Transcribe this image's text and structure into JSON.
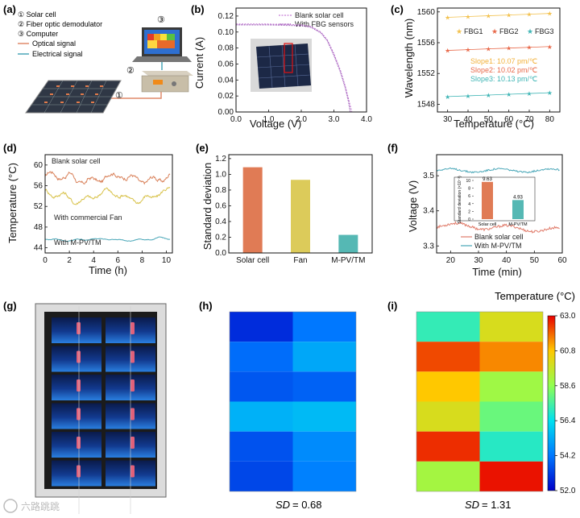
{
  "panels": {
    "a": {
      "label": "(a)",
      "legend": [
        "① Solar cell",
        "② Fiber optic demodulator",
        "③ Computer"
      ],
      "signals": [
        "Optical signal",
        "Electrical signal"
      ],
      "markers": [
        "①",
        "②",
        "③"
      ],
      "colors": {
        "optical": "#e08a6a",
        "electrical": "#4aa7b8"
      }
    },
    "g": {
      "label": "(g)"
    },
    "h": {
      "label": "(h)",
      "sd_prefix": "SD",
      "sd_value": "= 0.68"
    },
    "i": {
      "label": "(i)",
      "sd_prefix": "SD",
      "sd_value": "= 1.31"
    }
  },
  "colorbar": {
    "title": "Temperature (°C)",
    "ticks": [
      "63.0",
      "60.8",
      "58.6",
      "56.4",
      "54.2",
      "52.0"
    ],
    "min": 52.0,
    "max": 63.0
  },
  "chart_data": [
    {
      "id": "b",
      "label": "(b)",
      "type": "line",
      "xlabel": "Voltage (V)",
      "ylabel": "Current (A)",
      "xlim": [
        0,
        4.0
      ],
      "ylim": [
        0,
        0.13
      ],
      "xticks": [
        "0.0",
        "1.0",
        "2.0",
        "3.0",
        "4.0"
      ],
      "yticks": [
        "0.00",
        "0.02",
        "0.04",
        "0.06",
        "0.08",
        "0.10",
        "0.12"
      ],
      "series": [
        {
          "name": "Blank solar cell",
          "color": "#c77fd6",
          "x": [
            0,
            0.5,
            1.0,
            1.5,
            2.0,
            2.3,
            2.6,
            2.8,
            3.0,
            3.2,
            3.35,
            3.45,
            3.55
          ],
          "y": [
            0.11,
            0.11,
            0.11,
            0.1095,
            0.109,
            0.107,
            0.1,
            0.09,
            0.073,
            0.052,
            0.032,
            0.016,
            0.0
          ]
        },
        {
          "name": "With FBG sensors",
          "color": "#9b59b6",
          "x": [
            0,
            0.5,
            1.0,
            1.5,
            2.0,
            2.3,
            2.6,
            2.8,
            3.0,
            3.2,
            3.35,
            3.45,
            3.5
          ],
          "y": [
            0.109,
            0.109,
            0.109,
            0.1085,
            0.108,
            0.106,
            0.099,
            0.089,
            0.071,
            0.05,
            0.03,
            0.013,
            0.0
          ]
        }
      ]
    },
    {
      "id": "c",
      "label": "(c)",
      "type": "scatter",
      "xlabel": "Temperature (°C)",
      "ylabel": "Wavelength (nm)",
      "xlim": [
        25,
        85
      ],
      "ylim": [
        1547,
        1560.5
      ],
      "xticks": [
        30,
        40,
        50,
        60,
        70,
        80
      ],
      "yticks": [
        1548,
        1552,
        1556,
        1560
      ],
      "x": [
        30,
        40,
        50,
        60,
        70,
        80
      ],
      "series": [
        {
          "name": "FBG1",
          "color": "#f2c14e",
          "y": [
            1559.3,
            1559.4,
            1559.5,
            1559.6,
            1559.7,
            1559.8
          ]
        },
        {
          "name": "FBG2",
          "color": "#e8694a",
          "y": [
            1555.0,
            1555.1,
            1555.2,
            1555.3,
            1555.4,
            1555.5
          ]
        },
        {
          "name": "FBG3",
          "color": "#3fb5b5",
          "y": [
            1549.0,
            1549.1,
            1549.2,
            1549.3,
            1549.4,
            1549.5
          ]
        }
      ],
      "annotations": [
        {
          "text": "Slope1: 10.07 pm/℃",
          "color": "#f2b13a"
        },
        {
          "text": "Slope2: 10.02 pm/℃",
          "color": "#e8694a"
        },
        {
          "text": "Slope3: 10.13 pm/℃",
          "color": "#3fb5b5"
        }
      ]
    },
    {
      "id": "d",
      "label": "(d)",
      "type": "line",
      "xlabel": "Time (h)",
      "ylabel": "Temperature (°C)",
      "xlim": [
        0,
        10.5
      ],
      "ylim": [
        43,
        62
      ],
      "xticks": [
        0,
        2,
        4,
        6,
        8,
        10
      ],
      "yticks": [
        44,
        48,
        52,
        56,
        60
      ],
      "series": [
        {
          "name": "Blank solar cell",
          "color": "#d9825b",
          "base": 57.5,
          "amp": 2.0
        },
        {
          "name": "With commercial Fan",
          "color": "#d8c24a",
          "base": 54.0,
          "amp": 1.8
        },
        {
          "name": "With M-PV/TM",
          "color": "#4aa7b8",
          "base": 45.6,
          "amp": 0.4
        }
      ],
      "annotations": [
        {
          "text": "Blank solar cell",
          "color": "#222222"
        },
        {
          "text": "With commercial Fan",
          "color": "#d8c24a"
        },
        {
          "text": "With M-PV/TM",
          "color": "#3fb5b5"
        }
      ]
    },
    {
      "id": "e",
      "label": "(e)",
      "type": "bar",
      "xlabel": "",
      "ylabel": "Standard deviation",
      "ylim": [
        0,
        1.25
      ],
      "yticks": [
        "0.0",
        "0.2",
        "0.4",
        "0.6",
        "0.8",
        "1.0",
        "1.2"
      ],
      "categories": [
        "Solar cell",
        "Fan",
        "M-PV/TM"
      ],
      "values": [
        1.09,
        0.93,
        0.23
      ],
      "colors": [
        "#e07b55",
        "#dccb5a",
        "#55b8b4"
      ]
    },
    {
      "id": "f",
      "label": "(f)",
      "type": "line",
      "xlabel": "Time (min)",
      "ylabel": "Voltage (V)",
      "xlim": [
        15,
        60
      ],
      "ylim": [
        3.28,
        3.56
      ],
      "xticks": [
        20,
        30,
        40,
        50,
        60
      ],
      "yticks": [
        "3.3",
        "3.4",
        "3.5"
      ],
      "series": [
        {
          "name": "Blank solar cell",
          "color": "#e07b6a",
          "base": 3.36,
          "amp": 0.012
        },
        {
          "name": "With M-PV/TM",
          "color": "#4aa7b8",
          "base": 3.515,
          "amp": 0.008
        }
      ],
      "inset": {
        "ylabel": "Standard deviation (×10⁻³)",
        "yticks": [
          "0",
          "2",
          "4",
          "6",
          "8",
          "10"
        ],
        "categories": [
          "Solar cell",
          "M-PV/TM"
        ],
        "values": [
          9.63,
          4.93
        ],
        "labels": [
          "9.63",
          "4.93"
        ],
        "colors": [
          "#e07b55",
          "#55b8b4"
        ]
      }
    },
    {
      "id": "h",
      "type": "heatmap",
      "rows": 6,
      "cols": 2,
      "values": [
        [
          52.8,
          54.2
        ],
        [
          54.0,
          55.2
        ],
        [
          53.6,
          53.8
        ],
        [
          55.4,
          55.6
        ],
        [
          53.5,
          54.6
        ],
        [
          53.3,
          54.4
        ]
      ]
    },
    {
      "id": "i",
      "type": "heatmap",
      "rows": 6,
      "cols": 2,
      "values": [
        [
          57.2,
          60.0
        ],
        [
          62.2,
          61.5
        ],
        [
          60.8,
          58.9
        ],
        [
          60.0,
          58.0
        ],
        [
          62.5,
          57.0
        ],
        [
          59.0,
          62.8
        ]
      ]
    }
  ],
  "watermark": "六路跳跳"
}
